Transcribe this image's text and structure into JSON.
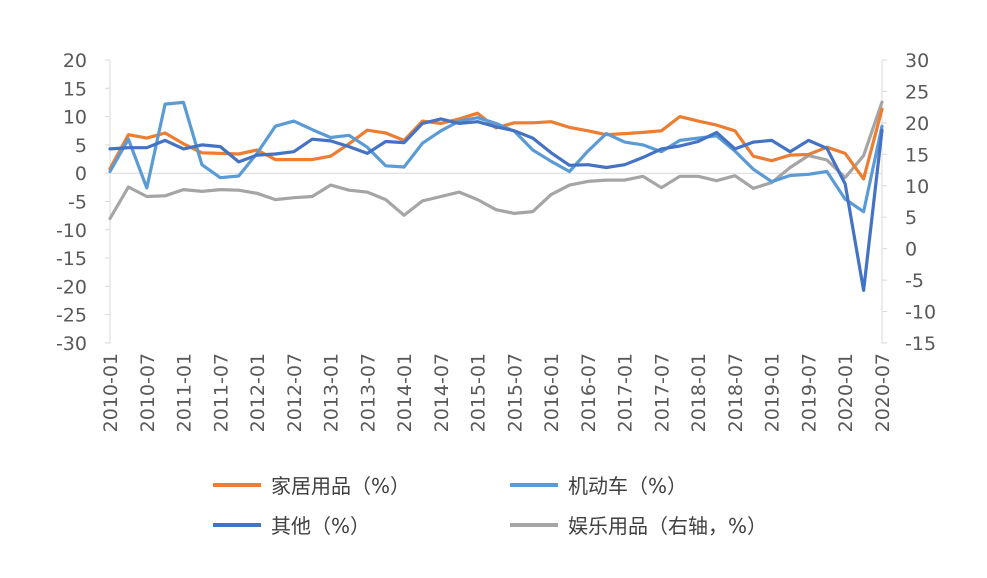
{
  "chart_data": {
    "type": "line",
    "x": [
      "2010-01",
      "2010-04",
      "2010-07",
      "2010-10",
      "2011-01",
      "2011-04",
      "2011-07",
      "2011-10",
      "2012-01",
      "2012-04",
      "2012-07",
      "2012-10",
      "2013-01",
      "2013-04",
      "2013-07",
      "2013-10",
      "2014-01",
      "2014-04",
      "2014-07",
      "2014-10",
      "2015-01",
      "2015-04",
      "2015-07",
      "2015-10",
      "2016-01",
      "2016-04",
      "2016-07",
      "2016-10",
      "2017-01",
      "2017-04",
      "2017-07",
      "2017-10",
      "2018-01",
      "2018-04",
      "2018-07",
      "2018-10",
      "2019-01",
      "2019-04",
      "2019-07",
      "2019-10",
      "2020-01",
      "2020-04",
      "2020-07"
    ],
    "x_tick_labels": [
      "2010-01",
      "2010-07",
      "2011-01",
      "2011-07",
      "2012-01",
      "2012-07",
      "2013-01",
      "2013-07",
      "2014-01",
      "2014-07",
      "2015-01",
      "2015-07",
      "2016-01",
      "2016-07",
      "2017-01",
      "2017-07",
      "2018-01",
      "2018-07",
      "2019-01",
      "2019-07",
      "2020-01",
      "2020-07"
    ],
    "y_left": {
      "min": -30,
      "max": 20,
      "ticks": [
        20,
        15,
        10,
        5,
        0,
        -5,
        -10,
        -15,
        -20,
        -25,
        -30
      ]
    },
    "y_right": {
      "min": -15,
      "max": 30,
      "ticks": [
        30,
        25,
        20,
        15,
        10,
        5,
        0,
        -5,
        -10,
        -15
      ]
    },
    "series": [
      {
        "name": "家居用品（%）",
        "axis": "left",
        "color": "#ED7D31",
        "values": [
          0.8,
          6.8,
          6.2,
          7.1,
          5.2,
          3.6,
          3.5,
          3.4,
          4.1,
          2.4,
          2.4,
          2.4,
          3.0,
          5.2,
          7.6,
          7.1,
          5.8,
          9.2,
          8.8,
          9.6,
          10.6,
          8.0,
          8.9,
          8.9,
          9.1,
          8.1,
          7.5,
          6.8,
          7.0,
          7.2,
          7.5,
          10.0,
          9.2,
          8.5,
          7.5,
          3.0,
          2.2,
          3.2,
          3.3,
          4.6,
          3.5,
          -1.0,
          11.3
        ]
      },
      {
        "name": "机动车（%）",
        "axis": "left",
        "color": "#5B9BD5",
        "values": [
          0.3,
          6.0,
          -2.6,
          12.2,
          12.5,
          1.5,
          -0.8,
          -0.5,
          3.5,
          8.3,
          9.2,
          7.7,
          6.3,
          6.7,
          4.6,
          1.3,
          1.1,
          5.3,
          7.5,
          9.2,
          9.8,
          8.8,
          7.4,
          4.1,
          2.1,
          0.3,
          3.9,
          7.0,
          5.5,
          5.0,
          3.8,
          5.8,
          6.2,
          6.6,
          3.9,
          0.7,
          -1.5,
          -0.4,
          -0.2,
          0.3,
          -4.6,
          -6.8,
          8.3
        ]
      },
      {
        "name": "其他（%）",
        "axis": "left",
        "color": "#4472C4",
        "values": [
          4.3,
          4.5,
          4.5,
          5.8,
          4.3,
          5.0,
          4.7,
          2.0,
          3.2,
          3.4,
          3.8,
          6.0,
          5.7,
          4.7,
          3.5,
          5.6,
          5.4,
          8.8,
          9.6,
          8.8,
          9.1,
          8.2,
          7.5,
          6.2,
          3.6,
          1.4,
          1.5,
          1.0,
          1.5,
          2.8,
          4.3,
          4.8,
          5.6,
          7.2,
          4.3,
          5.5,
          5.8,
          3.8,
          5.8,
          4.4,
          -1.9,
          -20.7,
          7.6
        ]
      },
      {
        "name": "娱乐用品（右轴，%）",
        "axis": "right",
        "color": "#A5A5A5",
        "values": [
          4.8,
          9.8,
          8.3,
          8.4,
          9.4,
          9.1,
          9.4,
          9.3,
          8.8,
          7.8,
          8.1,
          8.3,
          10.1,
          9.3,
          9.0,
          7.8,
          5.3,
          7.6,
          8.3,
          9.0,
          7.8,
          6.2,
          5.6,
          5.9,
          8.6,
          10.1,
          10.7,
          10.9,
          10.9,
          11.5,
          9.7,
          11.5,
          11.5,
          10.8,
          11.6,
          9.6,
          10.5,
          12.9,
          14.8,
          14.1,
          11.3,
          14.8,
          23.3
        ]
      }
    ]
  }
}
